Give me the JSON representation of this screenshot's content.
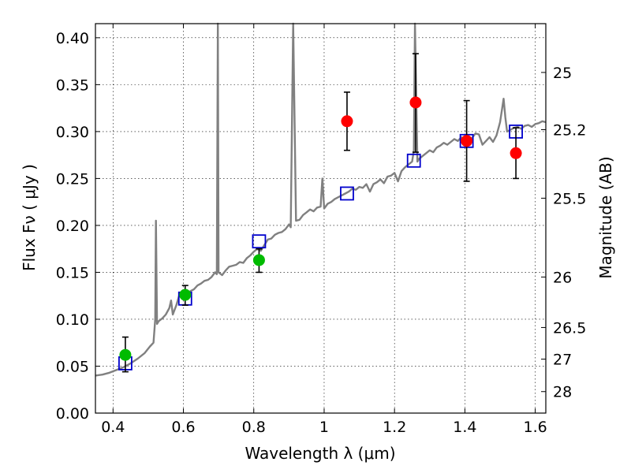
{
  "chart_data": {
    "type": "scatter",
    "xlabel": "Wavelength  λ (μm)",
    "ylabel": "Flux  Fν  ( μJy )",
    "y2label": "Magnitude (AB)",
    "xlim": [
      0.35,
      1.63
    ],
    "ylim": [
      0.0,
      0.415
    ],
    "grid": true,
    "x_ticks": [
      0.4,
      0.6,
      0.8,
      1.0,
      1.2,
      1.4,
      1.6
    ],
    "x_tick_labels": [
      "0.4",
      "0.6",
      "0.8",
      "1",
      "1.2",
      "1.4",
      "1.6"
    ],
    "y_ticks": [
      0.0,
      0.05,
      0.1,
      0.15,
      0.2,
      0.25,
      0.3,
      0.35,
      0.4
    ],
    "y_tick_labels": [
      "0.00",
      "0.05",
      "0.10",
      "0.15",
      "0.20",
      "0.25",
      "0.30",
      "0.35",
      "0.40"
    ],
    "magnitude_ticks": [
      {
        "label": "25",
        "flux": 0.363
      },
      {
        "label": "25.2",
        "flux": 0.302
      },
      {
        "label": "25.5",
        "flux": 0.229
      },
      {
        "label": "26",
        "flux": 0.145
      },
      {
        "label": "26.5",
        "flux": 0.0912
      },
      {
        "label": "27",
        "flux": 0.0575
      },
      {
        "label": "28",
        "flux": 0.0229
      }
    ],
    "model_spectrum": {
      "color": "#808080",
      "points": [
        [
          0.35,
          0.04
        ],
        [
          0.37,
          0.041
        ],
        [
          0.39,
          0.043
        ],
        [
          0.41,
          0.046
        ],
        [
          0.43,
          0.049
        ],
        [
          0.45,
          0.053
        ],
        [
          0.47,
          0.058
        ],
        [
          0.49,
          0.064
        ],
        [
          0.505,
          0.071
        ],
        [
          0.515,
          0.075
        ],
        [
          0.52,
          0.1
        ],
        [
          0.522,
          0.205
        ],
        [
          0.525,
          0.095
        ],
        [
          0.53,
          0.098
        ],
        [
          0.54,
          0.101
        ],
        [
          0.55,
          0.105
        ],
        [
          0.56,
          0.112
        ],
        [
          0.565,
          0.12
        ],
        [
          0.57,
          0.105
        ],
        [
          0.58,
          0.115
        ],
        [
          0.59,
          0.128
        ],
        [
          0.6,
          0.129
        ],
        [
          0.61,
          0.126
        ],
        [
          0.62,
          0.13
        ],
        [
          0.63,
          0.132
        ],
        [
          0.64,
          0.136
        ],
        [
          0.65,
          0.138
        ],
        [
          0.66,
          0.141
        ],
        [
          0.67,
          0.142
        ],
        [
          0.68,
          0.145
        ],
        [
          0.69,
          0.15
        ],
        [
          0.695,
          0.148
        ],
        [
          0.698,
          0.415
        ],
        [
          0.7,
          0.15
        ],
        [
          0.71,
          0.147
        ],
        [
          0.72,
          0.152
        ],
        [
          0.73,
          0.156
        ],
        [
          0.74,
          0.157
        ],
        [
          0.75,
          0.158
        ],
        [
          0.76,
          0.161
        ],
        [
          0.77,
          0.16
        ],
        [
          0.78,
          0.165
        ],
        [
          0.79,
          0.168
        ],
        [
          0.8,
          0.172
        ],
        [
          0.81,
          0.175
        ],
        [
          0.82,
          0.173
        ],
        [
          0.83,
          0.179
        ],
        [
          0.84,
          0.185
        ],
        [
          0.85,
          0.186
        ],
        [
          0.86,
          0.19
        ],
        [
          0.87,
          0.192
        ],
        [
          0.88,
          0.193
        ],
        [
          0.89,
          0.196
        ],
        [
          0.9,
          0.201
        ],
        [
          0.905,
          0.198
        ],
        [
          0.912,
          0.415
        ],
        [
          0.92,
          0.205
        ],
        [
          0.93,
          0.206
        ],
        [
          0.94,
          0.211
        ],
        [
          0.95,
          0.214
        ],
        [
          0.96,
          0.217
        ],
        [
          0.97,
          0.215
        ],
        [
          0.98,
          0.219
        ],
        [
          0.99,
          0.22
        ],
        [
          0.995,
          0.25
        ],
        [
          1.0,
          0.218
        ],
        [
          1.01,
          0.223
        ],
        [
          1.02,
          0.225
        ],
        [
          1.03,
          0.228
        ],
        [
          1.04,
          0.23
        ],
        [
          1.05,
          0.232
        ],
        [
          1.06,
          0.234
        ],
        [
          1.07,
          0.236
        ],
        [
          1.08,
          0.239
        ],
        [
          1.09,
          0.238
        ],
        [
          1.1,
          0.241
        ],
        [
          1.11,
          0.24
        ],
        [
          1.12,
          0.244
        ],
        [
          1.13,
          0.236
        ],
        [
          1.14,
          0.244
        ],
        [
          1.15,
          0.246
        ],
        [
          1.16,
          0.249
        ],
        [
          1.17,
          0.245
        ],
        [
          1.18,
          0.252
        ],
        [
          1.19,
          0.253
        ],
        [
          1.2,
          0.256
        ],
        [
          1.21,
          0.247
        ],
        [
          1.22,
          0.258
        ],
        [
          1.23,
          0.262
        ],
        [
          1.24,
          0.265
        ],
        [
          1.25,
          0.268
        ],
        [
          1.255,
          0.28
        ],
        [
          1.258,
          0.415
        ],
        [
          1.265,
          0.268
        ],
        [
          1.27,
          0.271
        ],
        [
          1.28,
          0.274
        ],
        [
          1.29,
          0.277
        ],
        [
          1.3,
          0.28
        ],
        [
          1.31,
          0.278
        ],
        [
          1.32,
          0.283
        ],
        [
          1.33,
          0.285
        ],
        [
          1.34,
          0.288
        ],
        [
          1.35,
          0.286
        ],
        [
          1.36,
          0.289
        ],
        [
          1.37,
          0.292
        ],
        [
          1.38,
          0.29
        ],
        [
          1.39,
          0.294
        ],
        [
          1.4,
          0.29
        ],
        [
          1.41,
          0.288
        ],
        [
          1.42,
          0.293
        ],
        [
          1.43,
          0.298
        ],
        [
          1.44,
          0.297
        ],
        [
          1.45,
          0.286
        ],
        [
          1.46,
          0.29
        ],
        [
          1.47,
          0.294
        ],
        [
          1.48,
          0.289
        ],
        [
          1.49,
          0.296
        ],
        [
          1.5,
          0.31
        ],
        [
          1.51,
          0.335
        ],
        [
          1.515,
          0.315
        ],
        [
          1.52,
          0.3
        ],
        [
          1.53,
          0.302
        ],
        [
          1.54,
          0.304
        ],
        [
          1.55,
          0.305
        ],
        [
          1.56,
          0.303
        ],
        [
          1.57,
          0.306
        ],
        [
          1.58,
          0.307
        ],
        [
          1.59,
          0.305
        ],
        [
          1.6,
          0.308
        ],
        [
          1.61,
          0.309
        ],
        [
          1.62,
          0.311
        ],
        [
          1.63,
          0.31
        ]
      ]
    },
    "model_fluxes": {
      "marker": "open-square",
      "color": "#0000cc",
      "points": [
        [
          0.435,
          0.053
        ],
        [
          0.605,
          0.122
        ],
        [
          0.815,
          0.183
        ],
        [
          1.065,
          0.234
        ],
        [
          1.255,
          0.269
        ],
        [
          1.405,
          0.29
        ],
        [
          1.545,
          0.3
        ]
      ]
    },
    "detections_green": {
      "marker": "filled-circle",
      "color": "#00bb00",
      "points": [
        {
          "x": 0.435,
          "y": 0.062,
          "err_lo": 0.018,
          "err_hi": 0.019
        },
        {
          "x": 0.605,
          "y": 0.126,
          "err_lo": 0.011,
          "err_hi": 0.01
        },
        {
          "x": 0.815,
          "y": 0.163,
          "err_lo": 0.013,
          "err_hi": 0.012
        }
      ]
    },
    "detections_red": {
      "marker": "filled-circle",
      "color": "#ff0000",
      "points": [
        {
          "x": 1.065,
          "y": 0.311,
          "err_lo": 0.031,
          "err_hi": 0.031
        },
        {
          "x": 1.26,
          "y": 0.331,
          "err_lo": 0.053,
          "err_hi": 0.052
        },
        {
          "x": 1.405,
          "y": 0.29,
          "err_lo": 0.043,
          "err_hi": 0.043
        },
        {
          "x": 1.545,
          "y": 0.277,
          "err_lo": 0.027,
          "err_hi": 0.027
        }
      ]
    }
  }
}
